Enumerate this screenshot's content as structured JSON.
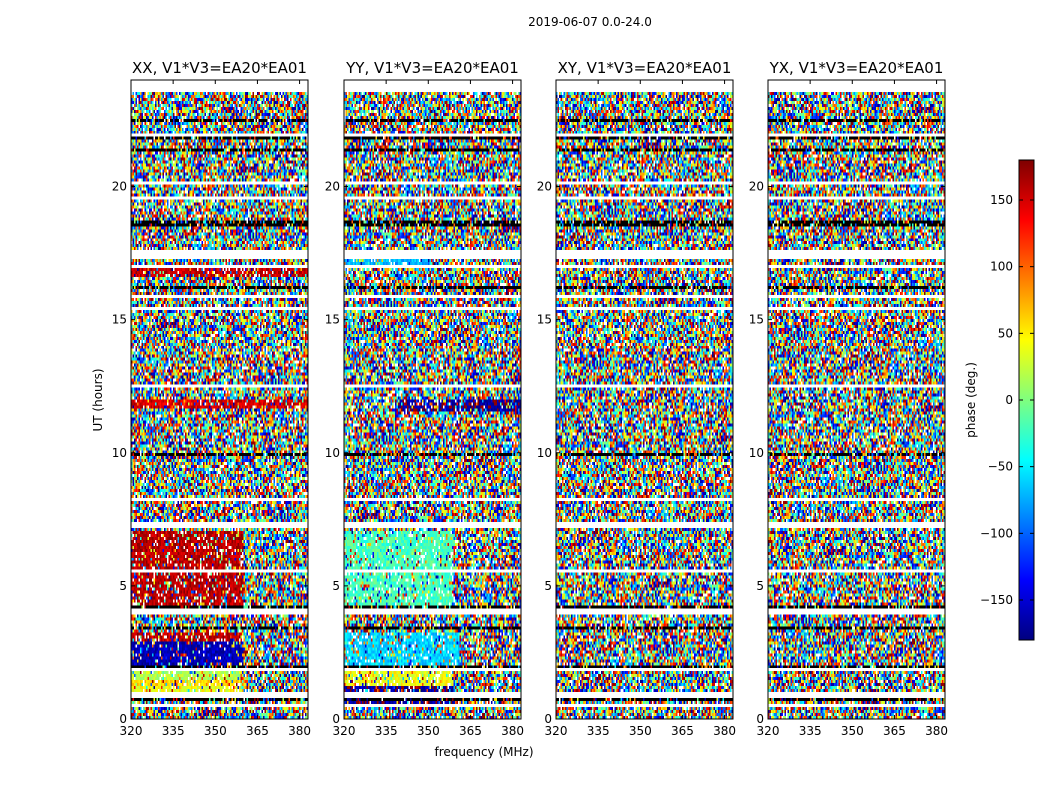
{
  "chart_data": {
    "type": "heatmap",
    "title": "2019-06-07 0.0-24.0",
    "xlabel": "frequency (MHz)",
    "ylabel": "UT (hours)",
    "xlim": [
      320,
      383
    ],
    "ylim": [
      0,
      24
    ],
    "x_ticks": [
      "320",
      "335",
      "350",
      "365",
      "380"
    ],
    "x_tick_values": [
      320,
      335,
      350,
      365,
      380
    ],
    "y_ticks": [
      "0",
      "5",
      "10",
      "15",
      "20"
    ],
    "y_tick_values": [
      0,
      5,
      10,
      15,
      20
    ],
    "panels": [
      {
        "title": "XX, V1*V3=EA20*EA01"
      },
      {
        "title": "YY, V1*V3=EA20*EA01"
      },
      {
        "title": "XY, V1*V3=EA20*EA01"
      },
      {
        "title": "YX, V1*V3=EA20*EA01"
      }
    ],
    "colorbar": {
      "label": "phase (deg.)",
      "range": [
        -180,
        180
      ],
      "ticks": [
        "150",
        "100",
        "50",
        "0",
        "−50",
        "−100",
        "−150"
      ],
      "tick_values": [
        150,
        100,
        50,
        0,
        -50,
        -100,
        -150
      ],
      "colormap": "jet"
    },
    "structured_regions": [
      {
        "panel": 0,
        "t": [
          0.9,
          1.2
        ],
        "f": [
          320,
          359
        ],
        "phase": 40
      },
      {
        "panel": 0,
        "t": [
          1.25,
          1.5
        ],
        "f": [
          320,
          359
        ],
        "phase": 60
      },
      {
        "panel": 0,
        "t": [
          1.5,
          1.75
        ],
        "f": [
          320,
          359
        ],
        "phase": 20
      },
      {
        "panel": 0,
        "t": [
          2.0,
          2.9
        ],
        "f": [
          320,
          360
        ],
        "phase": -160
      },
      {
        "panel": 0,
        "t": [
          2.95,
          3.25
        ],
        "f": [
          320,
          360
        ],
        "phase": 160
      },
      {
        "panel": 0,
        "t": [
          4.3,
          7.1
        ],
        "f": [
          320,
          360
        ],
        "phase": 160
      },
      {
        "panel": 0,
        "t": [
          11.7,
          12.0
        ],
        "f": [
          320,
          383
        ],
        "phase": 150
      },
      {
        "panel": 0,
        "t": [
          16.6,
          17.0
        ],
        "f": [
          320,
          383
        ],
        "phase": 155
      },
      {
        "panel": 1,
        "t": [
          0.6,
          1.2
        ],
        "f": [
          320,
          359
        ],
        "phase": -170
      },
      {
        "panel": 1,
        "t": [
          1.25,
          1.75
        ],
        "f": [
          320,
          359
        ],
        "phase": 40
      },
      {
        "panel": 1,
        "t": [
          2.0,
          3.3
        ],
        "f": [
          320,
          361
        ],
        "phase": -60
      },
      {
        "panel": 1,
        "t": [
          4.3,
          7.1
        ],
        "f": [
          320,
          359
        ],
        "phase": -20
      },
      {
        "panel": 1,
        "t": [
          11.6,
          12.0
        ],
        "f": [
          340,
          383
        ],
        "phase": -170
      },
      {
        "panel": 1,
        "t": [
          17.1,
          17.4
        ],
        "f": [
          320,
          350
        ],
        "phase": -70
      }
    ]
  },
  "colors": {
    "frame": "#000000",
    "background": "#ffffff",
    "gap": "#ffffff",
    "dark_line": "#000000"
  }
}
